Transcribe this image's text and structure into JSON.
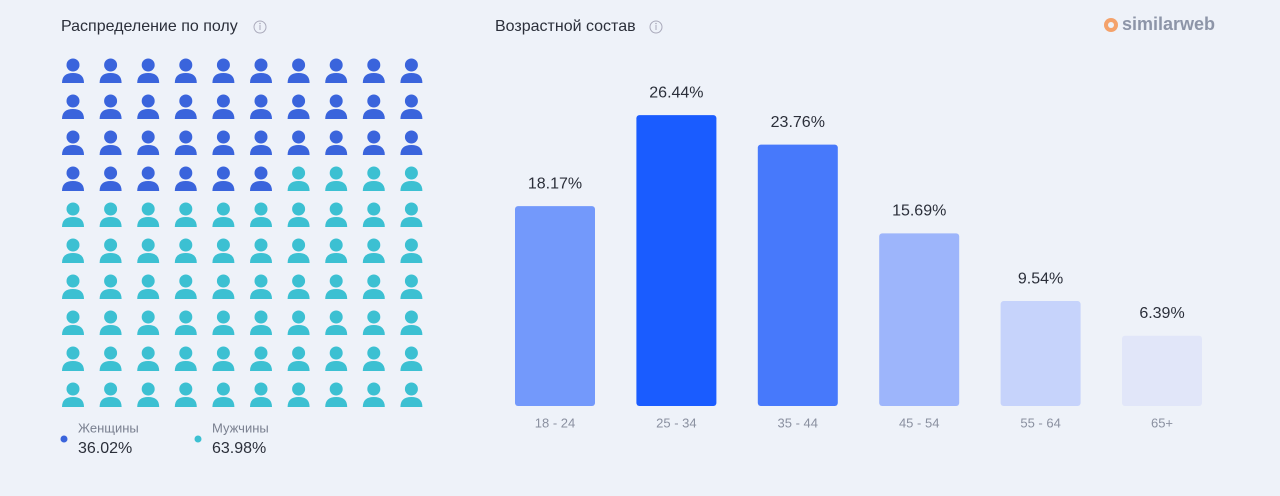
{
  "logo": "similarweb",
  "chart_data": [
    {
      "type": "waffle",
      "title": "Распределение по полу",
      "series": [
        {
          "name": "Женщины",
          "color": "#3a64dc",
          "values": [
            36.02
          ],
          "value_labels": [
            "36.02%"
          ]
        },
        {
          "name": "Мужчины",
          "color": "#3cc0d2",
          "values": [
            63.98
          ],
          "value_labels": [
            "63.98%"
          ]
        }
      ]
    },
    {
      "type": "bar",
      "title": "Возрастной состав",
      "categories": [
        "18 - 24",
        "25 - 34",
        "35 - 44",
        "45 - 54",
        "55 - 64",
        "65+"
      ],
      "values": [
        18.17,
        26.44,
        23.76,
        15.69,
        9.54,
        6.39
      ],
      "value_labels": [
        "18.17%",
        "26.44%",
        "23.76%",
        "15.69%",
        "9.54%",
        "6.39%"
      ],
      "colors": [
        "#7399fb",
        "#1a5cff",
        "#4779fb",
        "#9db5fb",
        "#c6d3fb",
        "#e1e6f9"
      ]
    }
  ]
}
